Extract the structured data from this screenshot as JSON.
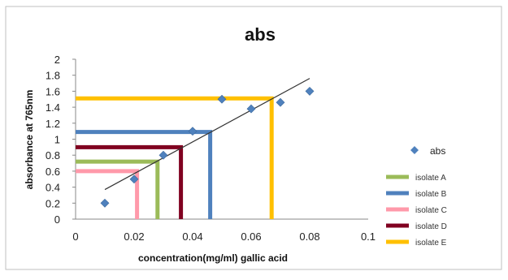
{
  "chart_data": {
    "type": "scatter",
    "title": "abs",
    "xlabel": "concentration(mg/ml)  gallic acid",
    "ylabel": "absorbance at 765nm",
    "xlim": [
      0,
      0.1
    ],
    "ylim": [
      0,
      2
    ],
    "x_ticks": [
      "0",
      "0.02",
      "0.04",
      "0.06",
      "0.08",
      "0.1"
    ],
    "y_ticks": [
      "0",
      "0.2",
      "0.4",
      "0.6",
      "0.8",
      "1",
      "1.2",
      "1.4",
      "1.6",
      "1.8",
      "2"
    ],
    "x_tick_values": [
      0,
      0.02,
      0.04,
      0.06,
      0.08,
      0.1
    ],
    "y_tick_values": [
      0,
      0.2,
      0.4,
      0.6,
      0.8,
      1,
      1.2,
      1.4,
      1.6,
      1.8,
      2
    ],
    "grid": false,
    "legend_position": "right",
    "scatter_series": {
      "name": "abs",
      "color": "#4f81bd",
      "points": [
        {
          "x": 0.01,
          "y": 0.2
        },
        {
          "x": 0.02,
          "y": 0.5
        },
        {
          "x": 0.03,
          "y": 0.8
        },
        {
          "x": 0.04,
          "y": 1.1
        },
        {
          "x": 0.05,
          "y": 1.5
        },
        {
          "x": 0.06,
          "y": 1.38
        },
        {
          "x": 0.07,
          "y": 1.46
        },
        {
          "x": 0.08,
          "y": 1.6
        }
      ]
    },
    "trendline": {
      "color": "#333333",
      "points": [
        {
          "x": 0.01,
          "y": 0.37
        },
        {
          "x": 0.08,
          "y": 1.76
        }
      ]
    },
    "isolates": [
      {
        "name": "isolate A",
        "color": "#9bbb59",
        "absorbance": 0.72,
        "concentration": 0.028
      },
      {
        "name": "isolate B",
        "color": "#4f81bd",
        "absorbance": 1.09,
        "concentration": 0.046
      },
      {
        "name": "isolate C",
        "color": "#ff99aa",
        "absorbance": 0.6,
        "concentration": 0.021
      },
      {
        "name": "isolate D",
        "color": "#800020",
        "absorbance": 0.9,
        "concentration": 0.036
      },
      {
        "name": "isolate E",
        "color": "#ffc000",
        "absorbance": 1.51,
        "concentration": 0.067
      }
    ]
  }
}
